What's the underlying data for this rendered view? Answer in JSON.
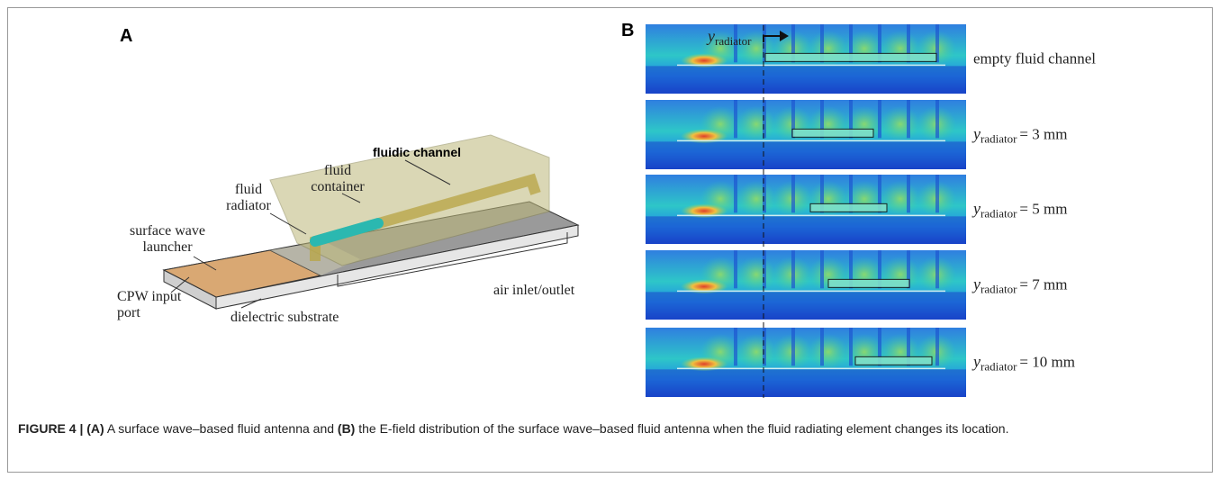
{
  "panel_a": {
    "label": "A",
    "annotations": {
      "fluidic_channel": [
        "fluidic channel"
      ],
      "fluid_container": [
        "fluid",
        "container"
      ],
      "fluid_radiator": [
        "fluid",
        "radiator"
      ],
      "surface_wave_launcher": [
        "surface wave",
        "launcher"
      ],
      "cpw_input_port": [
        "CPW input",
        "port"
      ],
      "dielectric_substrate": [
        "dielectric substrate"
      ],
      "air_inlet_outlet": [
        "air inlet/outlet"
      ]
    }
  },
  "panel_b": {
    "label": "B",
    "marker": {
      "var": "y",
      "sub": "radiator"
    },
    "rows": [
      {
        "text": "empty fluid channel"
      },
      {
        "var": "y",
        "sub": "radiator",
        "text": "= 3 mm"
      },
      {
        "var": "y",
        "sub": "radiator",
        "text": "= 5 mm"
      },
      {
        "var": "y",
        "sub": "radiator",
        "text": "= 7 mm"
      },
      {
        "var": "y",
        "sub": "radiator",
        "text": "= 10 mm"
      }
    ]
  },
  "caption": {
    "figure": "FIGURE 4 |",
    "a": "(A)",
    "a_text": "A surface wave–based fluid antenna and",
    "b": "(B)",
    "b_text": "the E-field distribution of the surface wave–based fluid antenna when the fluid radiating element changes its location."
  }
}
